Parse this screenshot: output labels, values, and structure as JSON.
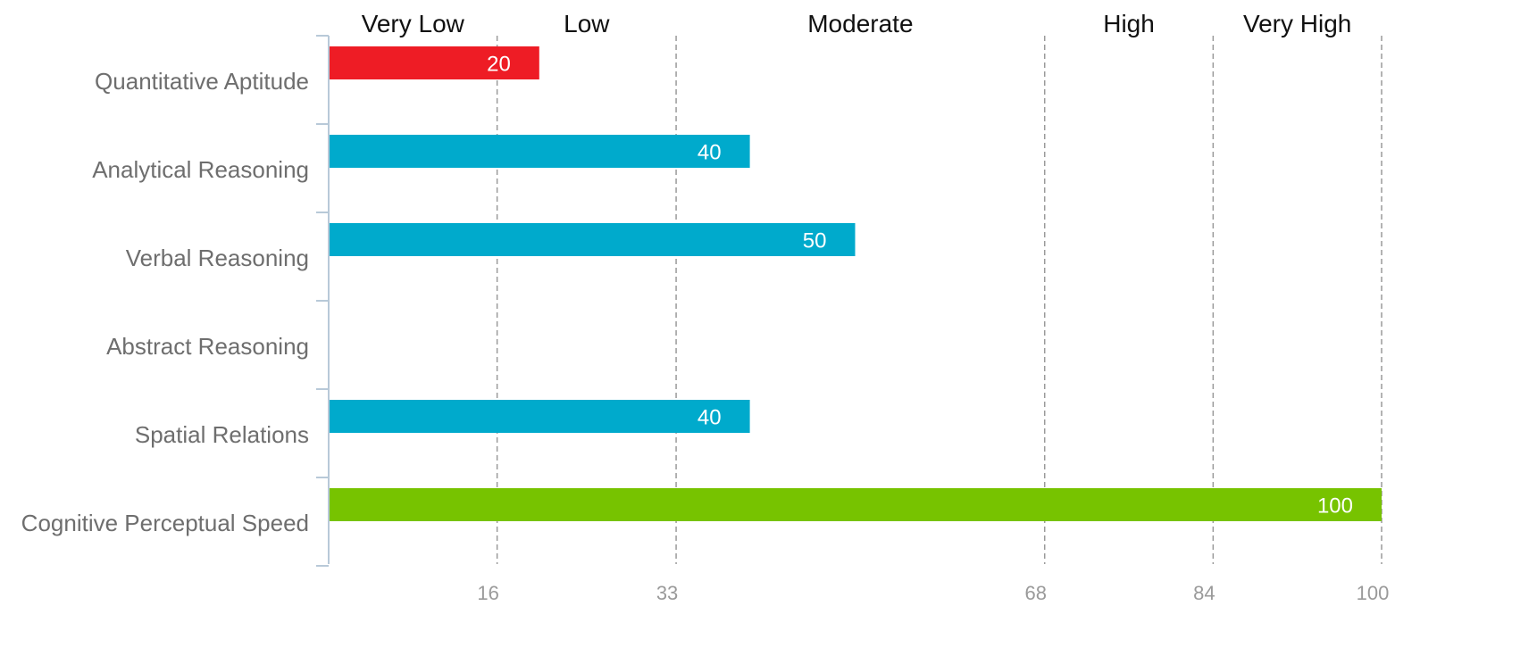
{
  "chart_data": {
    "type": "bar",
    "orientation": "horizontal",
    "categories": [
      "Quantitative Aptitude",
      "Analytical Reasoning",
      "Verbal Reasoning",
      "Abstract Reasoning",
      "Spatial Relations",
      "Cognitive Perceptual Speed"
    ],
    "values": [
      20,
      40,
      50,
      null,
      40,
      100
    ],
    "data_labels": [
      "20",
      "40",
      "50",
      "",
      "40",
      "100"
    ],
    "bar_colors": [
      "#ee1c25",
      "#00aacc",
      "#00aacc",
      "#00aacc",
      "#00aacc",
      "#77c300"
    ],
    "xlim": [
      0,
      100
    ],
    "x_ticks": [
      16,
      33,
      68,
      84,
      100
    ],
    "x_tick_labels": [
      "16",
      "33",
      "68",
      "84",
      "100"
    ],
    "bands": [
      {
        "label": "Very Low",
        "from": 0,
        "to": 16
      },
      {
        "label": "Low",
        "from": 16,
        "to": 33
      },
      {
        "label": "Moderate",
        "from": 33,
        "to": 68
      },
      {
        "label": "High",
        "from": 68,
        "to": 84
      },
      {
        "label": "Very High",
        "from": 84,
        "to": 100
      }
    ],
    "gridlines": "dashed",
    "xlabel": "",
    "ylabel": "",
    "title": ""
  }
}
